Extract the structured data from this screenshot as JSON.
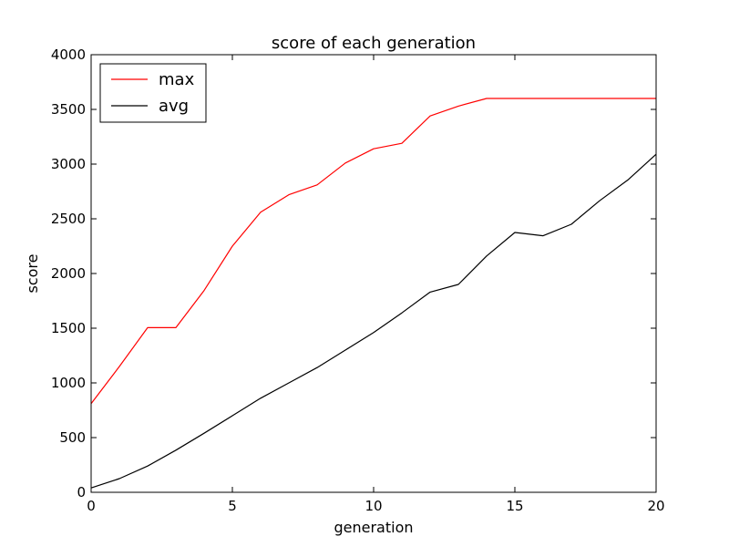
{
  "chart_data": {
    "type": "line",
    "title": "score of each generation",
    "xlabel": "generation",
    "ylabel": "score",
    "xlim": [
      0,
      20
    ],
    "ylim": [
      0,
      4000
    ],
    "xticks": [
      0,
      5,
      10,
      15,
      20
    ],
    "yticks": [
      0,
      500,
      1000,
      1500,
      2000,
      2500,
      3000,
      3500,
      4000
    ],
    "grid": false,
    "legend_position": "top-left",
    "x": [
      0,
      1,
      2,
      3,
      4,
      5,
      6,
      7,
      8,
      9,
      10,
      11,
      12,
      13,
      14,
      15,
      16,
      17,
      18,
      19,
      20
    ],
    "series": [
      {
        "name": "max",
        "color": "#ff0000",
        "values": [
          810,
          1150,
          1505,
          1505,
          1845,
          2250,
          2560,
          2720,
          2810,
          3010,
          3140,
          3190,
          3440,
          3530,
          3600,
          3600,
          3600,
          3600,
          3600,
          3600,
          3600
        ]
      },
      {
        "name": "avg",
        "color": "#000000",
        "values": [
          40,
          125,
          240,
          385,
          540,
          700,
          860,
          1000,
          1140,
          1300,
          1460,
          1640,
          1830,
          1900,
          2160,
          2375,
          2345,
          2450,
          2665,
          2855,
          3090
        ]
      }
    ]
  }
}
